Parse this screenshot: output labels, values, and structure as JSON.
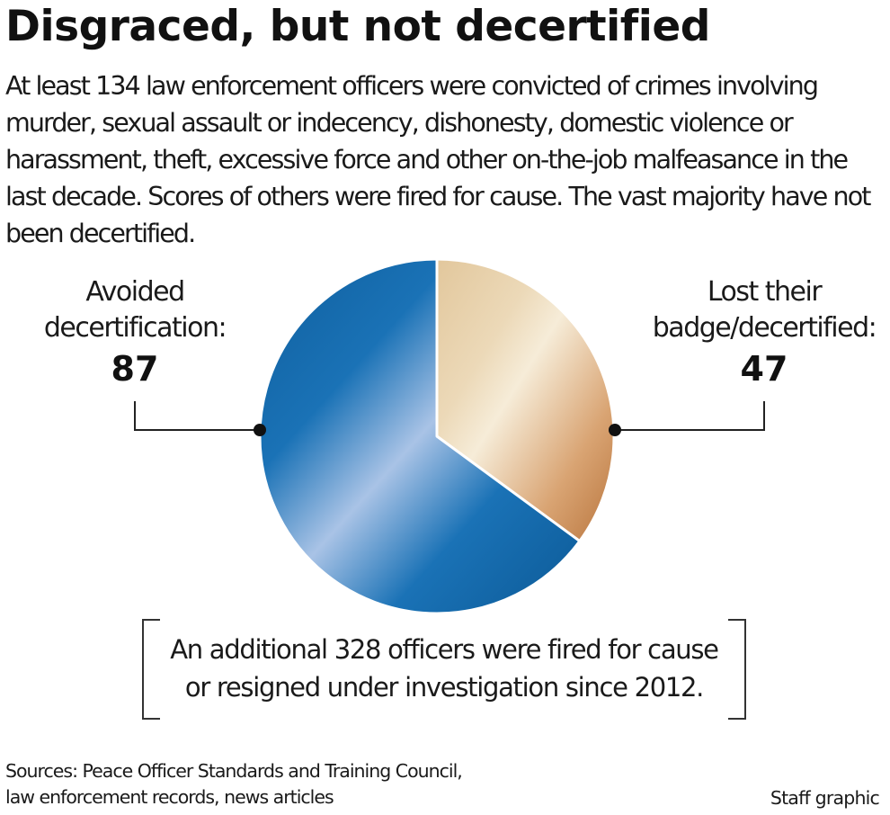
{
  "title": "Disgraced, but not decertified",
  "intro": "At least 134 law enforcement officers were convicted of crimes involving murder, sexual assault or indecency, dishonesty, domestic violence or harassment, theft, excessive force and other on-the-job malfeasance in the last decade. Scores of others were fired for cause. The vast majority have not been decertified.",
  "chart_data": {
    "type": "pie",
    "slices": [
      {
        "label_lines": [
          "Lost their",
          "badge/decertified:"
        ],
        "value": 47,
        "value_label": "47",
        "color": "#c98a4e"
      },
      {
        "label_lines": [
          "Avoided",
          "decertification:"
        ],
        "value": 87,
        "value_label": "87",
        "color": "#1f6fb0"
      }
    ]
  },
  "note": {
    "line1": "An additional 328 officers were fired for cause",
    "line2": "or resigned under investigation since 2012."
  },
  "sources": {
    "line1": "Sources: Peace Officer Standards and Training Council,",
    "line2": "law enforcement records, news articles"
  },
  "credit": "Staff graphic"
}
